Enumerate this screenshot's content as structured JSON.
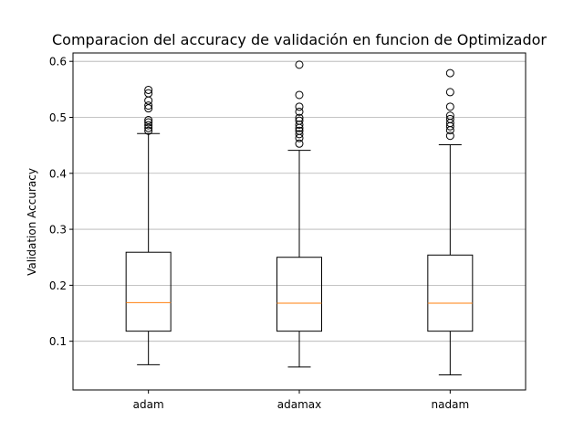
{
  "chart_data": {
    "type": "box",
    "title": "Comparacion del accuracy de validación en funcion de Optimizador",
    "xlabel": "",
    "ylabel": "Validation Accuracy",
    "ylim": [
      0.013,
      0.615
    ],
    "yticks": [
      "0.1",
      "0.2",
      "0.3",
      "0.4",
      "0.5",
      "0.6"
    ],
    "ytick_values": [
      0.1,
      0.2,
      0.3,
      0.4,
      0.5,
      0.6
    ],
    "grid": "y",
    "categories": [
      "adam",
      "adamax",
      "nadam"
    ],
    "boxes": [
      {
        "name": "adam",
        "whisker_low": 0.058,
        "q1": 0.118,
        "median": 0.169,
        "q3": 0.259,
        "whisker_high": 0.471,
        "outliers": [
          0.476,
          0.481,
          0.486,
          0.491,
          0.495,
          0.516,
          0.521,
          0.53,
          0.543,
          0.549
        ]
      },
      {
        "name": "adamax",
        "whisker_low": 0.054,
        "q1": 0.118,
        "median": 0.168,
        "q3": 0.25,
        "whisker_high": 0.441,
        "outliers": [
          0.453,
          0.463,
          0.47,
          0.476,
          0.481,
          0.487,
          0.494,
          0.499,
          0.51,
          0.519,
          0.54,
          0.594
        ]
      },
      {
        "name": "nadam",
        "whisker_low": 0.04,
        "q1": 0.118,
        "median": 0.168,
        "q3": 0.254,
        "whisker_high": 0.451,
        "outliers": [
          0.467,
          0.477,
          0.484,
          0.49,
          0.497,
          0.503,
          0.519,
          0.545,
          0.579
        ]
      }
    ],
    "colors": {
      "median": "#ff7f0e",
      "box": "#000000",
      "grid": "#b0b0b0"
    }
  }
}
